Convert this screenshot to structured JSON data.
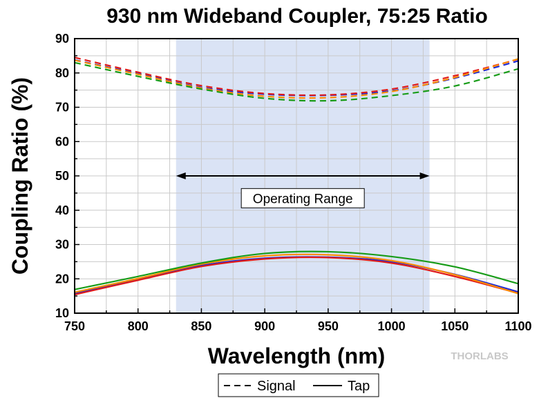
{
  "chart_data": {
    "type": "line",
    "title": "930 nm Wideband Coupler, 75:25 Ratio",
    "xlabel": "Wavelength (nm)",
    "ylabel": "Coupling Ratio (%)",
    "xlim": [
      750,
      1100
    ],
    "ylim": [
      10,
      90
    ],
    "xticks": [
      750,
      800,
      850,
      900,
      950,
      1000,
      1050,
      1100
    ],
    "yticks": [
      10,
      20,
      30,
      40,
      50,
      60,
      70,
      80,
      90
    ],
    "grid": true,
    "shaded_region": {
      "x": [
        830,
        1030
      ],
      "color": "#dae3f5"
    },
    "annotation": {
      "text": "Operating Range",
      "arrow_x": [
        830,
        1030
      ],
      "arrow_y": 50
    },
    "legend": {
      "placement": "bottom-center",
      "entries": [
        {
          "label": "Signal",
          "style": "dashed"
        },
        {
          "label": "Tap",
          "style": "solid"
        }
      ]
    },
    "brand": "THORLABS",
    "x": [
      750,
      800,
      850,
      900,
      950,
      1000,
      1050,
      1100
    ],
    "series": [
      {
        "group": "Signal",
        "color": "#1f2bd6",
        "style": "dashed",
        "values": [
          83.8,
          79.8,
          75.8,
          73.8,
          73.5,
          74.8,
          78.5,
          83.5
        ]
      },
      {
        "group": "Signal",
        "color": "#e01a1a",
        "style": "dashed",
        "values": [
          84.5,
          80.2,
          76.3,
          74.0,
          73.6,
          75.3,
          79.2,
          84.0
        ]
      },
      {
        "group": "Signal",
        "color": "#ff8c00",
        "style": "dashed",
        "values": [
          83.7,
          79.6,
          75.6,
          73.2,
          72.8,
          74.6,
          78.7,
          84.1
        ]
      },
      {
        "group": "Signal",
        "color": "#189c18",
        "style": "dashed",
        "values": [
          83.0,
          79.0,
          75.3,
          72.6,
          71.9,
          73.4,
          76.2,
          81.2
        ]
      },
      {
        "group": "Tap",
        "color": "#1f2bd6",
        "style": "solid",
        "values": [
          15.8,
          19.9,
          23.9,
          26.0,
          26.3,
          25.0,
          21.3,
          16.2
        ]
      },
      {
        "group": "Tap",
        "color": "#e01a1a",
        "style": "solid",
        "values": [
          15.4,
          19.6,
          23.6,
          25.8,
          26.2,
          24.6,
          20.7,
          15.8
        ]
      },
      {
        "group": "Tap",
        "color": "#ff8c00",
        "style": "solid",
        "values": [
          16.1,
          20.1,
          24.3,
          26.7,
          27.0,
          25.3,
          21.2,
          15.7
        ]
      },
      {
        "group": "Tap",
        "color": "#189c18",
        "style": "solid",
        "values": [
          16.9,
          20.7,
          24.6,
          27.4,
          27.9,
          26.5,
          23.5,
          18.6
        ]
      }
    ]
  }
}
